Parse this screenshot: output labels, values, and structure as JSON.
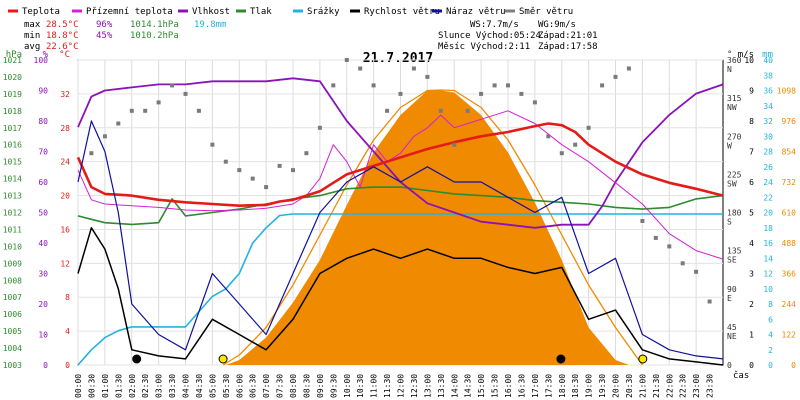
{
  "chart_data": {
    "type": "line",
    "title": "21.7.2017",
    "legend": [
      {
        "label": "Teplota",
        "color": "#e41b17"
      },
      {
        "label": "Přízemní teplota",
        "color": "#d61fd6"
      },
      {
        "label": "Vlhkost",
        "color": "#8b12b8"
      },
      {
        "label": "Tlak",
        "color": "#2e8b2e"
      },
      {
        "label": "Srážky",
        "color": "#22b3e0"
      },
      {
        "label": "Rychlost větru",
        "color": "#000000"
      },
      {
        "label": "Náraz větru",
        "color": "#1010a0"
      },
      {
        "label": "Směr větru",
        "color": "#808080"
      }
    ],
    "stats": {
      "max": {
        "label": "max",
        "temp": "28.5°C",
        "hum": "96%",
        "press": "1014.1hPa",
        "rain": "19.8mm"
      },
      "min": {
        "label": "min",
        "temp": "18.8°C",
        "hum": "45%",
        "press": "1010.2hPa"
      },
      "avg": {
        "label": "avg",
        "temp": "22.6°C"
      }
    },
    "wind_info": {
      "ws": "WS:7.7m/s",
      "wg": "WG:9m/s"
    },
    "sun_info": {
      "rise": "Slunce Východ:05:24",
      "set": "Západ:21:01"
    },
    "moon_info": {
      "rise": "Měsíc  Východ:2:11",
      "set": "Západ:17:58"
    },
    "axes": {
      "hpa": {
        "unit": "hPa",
        "ticks": [
          "1003",
          "1004",
          "1005",
          "1006",
          "1007",
          "1008",
          "1009",
          "1010",
          "1011",
          "1012",
          "1013",
          "1014",
          "1015",
          "1016",
          "1017",
          "1018",
          "1019",
          "1020",
          "1021"
        ],
        "range": [
          1003,
          1021
        ],
        "color": "#2e8b2e"
      },
      "pct": {
        "unit": "%",
        "ticks": [
          "0",
          "10",
          "20",
          "30",
          "40",
          "50",
          "60",
          "70",
          "80",
          "90",
          "100"
        ],
        "range": [
          0,
          100
        ],
        "color": "#8b12b8"
      },
      "temp": {
        "unit": "°C",
        "ticks": [
          "0",
          "4",
          "8",
          "12",
          "16",
          "20",
          "24",
          "28",
          "32"
        ],
        "range": [
          0,
          36
        ],
        "color": "#e41b17"
      },
      "dir": {
        "unit": "°",
        "ticks": [
          "0",
          "45\nNE",
          "90\nE",
          "135\nSE",
          "180\nS",
          "225\nSW",
          "270\nW",
          "315\nNW",
          "360\nN"
        ],
        "range": [
          0,
          360
        ],
        "color": "#333333"
      },
      "ms": {
        "unit": "m/s",
        "ticks": [
          "0",
          "1",
          "2",
          "3",
          "4",
          "5",
          "6",
          "7",
          "8",
          "9",
          "10"
        ],
        "range": [
          0,
          10
        ],
        "color": "#000000"
      },
      "mm": {
        "unit": "mm",
        "ticks": [
          "0",
          "2",
          "4",
          "6",
          "8",
          "10",
          "12",
          "14",
          "16",
          "18",
          "20",
          "22",
          "24",
          "26",
          "28",
          "30",
          "32",
          "34",
          "36",
          "38",
          "40"
        ],
        "range": [
          0,
          40
        ],
        "color": "#22b3e0"
      },
      "solar": {
        "unit": "",
        "ticks": [
          "0",
          "122",
          "244",
          "366",
          "488",
          "610",
          "732",
          "854",
          "976",
          "1098"
        ],
        "range": [
          0,
          1220
        ],
        "color": "#f08a00"
      },
      "time": {
        "label": "čas",
        "ticks": [
          "00:00",
          "00:30",
          "01:00",
          "01:30",
          "02:00",
          "02:30",
          "03:00",
          "03:30",
          "04:00",
          "04:30",
          "05:00",
          "05:30",
          "06:00",
          "06:30",
          "07:00",
          "07:30",
          "08:00",
          "08:30",
          "09:00",
          "09:30",
          "10:00",
          "10:30",
          "11:00",
          "11:30",
          "12:00",
          "12:30",
          "13:00",
          "13:30",
          "14:00",
          "14:30",
          "15:00",
          "15:30",
          "16:00",
          "16:30",
          "17:00",
          "17:30",
          "18:00",
          "18:30",
          "19:00",
          "19:30",
          "20:00",
          "20:30",
          "21:00",
          "21:30",
          "22:00",
          "22:30",
          "23:00",
          "23:30"
        ]
      }
    },
    "series": {
      "temperature": {
        "name": "Teplota",
        "x_hours": [
          0,
          0.5,
          1,
          1.5,
          2,
          3,
          4,
          5,
          6,
          7,
          7.5,
          8,
          8.5,
          9,
          9.5,
          10,
          11,
          12,
          13,
          14,
          15,
          16,
          17,
          17.5,
          18,
          18.5,
          19,
          20,
          21,
          22,
          23,
          24
        ],
        "values": [
          24.5,
          21,
          20.2,
          20.1,
          20,
          19.5,
          19.2,
          19,
          18.8,
          18.9,
          19.3,
          19.5,
          20,
          20.5,
          21.5,
          22.5,
          23.5,
          24.5,
          25.5,
          26.3,
          27,
          27.5,
          28.2,
          28.5,
          28.3,
          27.5,
          26,
          24,
          22.5,
          21.5,
          20.8,
          20
        ]
      },
      "ground_temperature": {
        "name": "Přízemní teplota",
        "x_hours": [
          0,
          0.5,
          1,
          2,
          3,
          4,
          5,
          6,
          7,
          8,
          8.5,
          9,
          9.5,
          10,
          10.5,
          11,
          11.5,
          12,
          12.5,
          13,
          13.5,
          14,
          15,
          16,
          17,
          18,
          19,
          20,
          21,
          22,
          23,
          24
        ],
        "values": [
          23,
          19.5,
          19,
          18.8,
          18.6,
          18.3,
          18.2,
          18.3,
          18.5,
          19,
          20,
          22,
          26,
          24,
          21,
          26,
          24,
          25,
          27,
          28,
          29.5,
          28,
          29,
          30,
          28.5,
          26,
          24,
          21.5,
          19,
          15.5,
          13.5,
          12.5
        ]
      },
      "humidity": {
        "name": "Vlhkost",
        "x_hours": [
          0,
          0.5,
          1,
          2,
          3,
          4,
          5,
          6,
          7,
          8,
          9,
          10,
          11,
          12,
          13,
          14,
          15,
          16,
          17,
          18,
          19,
          19.5,
          20,
          21,
          22,
          23,
          24
        ],
        "values": [
          78,
          88,
          90,
          91,
          92,
          92,
          93,
          93,
          93,
          94,
          93,
          80,
          70,
          60,
          53,
          50,
          47,
          46,
          45,
          46,
          46,
          52,
          60,
          73,
          82,
          89,
          92
        ]
      },
      "pressure": {
        "name": "Tlak",
        "x_hours": [
          0,
          0.5,
          1,
          2,
          3,
          3.5,
          4,
          5,
          6,
          7,
          8,
          9,
          10,
          11,
          12,
          13,
          14,
          15,
          16,
          17,
          18,
          19,
          20,
          21,
          22,
          23,
          24
        ],
        "values": [
          1011.8,
          1011.6,
          1011.4,
          1011.3,
          1011.4,
          1012.8,
          1011.8,
          1012,
          1012.2,
          1012.5,
          1012.8,
          1013,
          1013.4,
          1013.5,
          1013.5,
          1013.3,
          1013.1,
          1013,
          1012.9,
          1012.7,
          1012.6,
          1012.5,
          1012.3,
          1012.2,
          1012.3,
          1012.8,
          1013
        ]
      },
      "rain_cumulative": {
        "name": "Srážky",
        "x_hours": [
          0,
          0.5,
          1,
          1.5,
          2,
          3,
          4,
          5,
          5.5,
          6,
          6.5,
          7,
          7.5,
          8,
          24
        ],
        "values": [
          0,
          2,
          3.6,
          4.5,
          5,
          5,
          5,
          9,
          10,
          12,
          16,
          18,
          19.6,
          19.8,
          19.8
        ]
      },
      "wind_speed": {
        "name": "Rychlost větru",
        "x_hours": [
          0,
          0.5,
          1,
          1.5,
          2,
          3,
          4,
          5,
          6,
          7,
          8,
          9,
          10,
          11,
          12,
          13,
          14,
          15,
          16,
          17,
          18,
          19,
          20,
          21,
          22,
          23,
          24
        ],
        "values": [
          3,
          4.5,
          3.8,
          2.5,
          0.5,
          0.3,
          0.2,
          1.5,
          1,
          0.5,
          1.5,
          3,
          3.5,
          3.8,
          3.5,
          3.8,
          3.5,
          3.5,
          3.2,
          3,
          3.2,
          1.5,
          1.8,
          0.5,
          0.2,
          0.1,
          0
        ]
      },
      "wind_gust": {
        "name": "Náraz větru",
        "x_hours": [
          0,
          0.5,
          1,
          1.5,
          2,
          3,
          4,
          5,
          6,
          7,
          8,
          9,
          10,
          11,
          12,
          13,
          14,
          15,
          16,
          17,
          18,
          19,
          20,
          21,
          22,
          23,
          24
        ],
        "values": [
          6,
          8,
          7,
          5,
          2,
          1,
          0.5,
          3,
          2,
          1,
          3,
          5,
          6,
          6.5,
          6,
          6.5,
          6,
          6,
          5.5,
          5,
          5.5,
          3,
          3.5,
          1,
          0.5,
          0.3,
          0.2
        ]
      },
      "wind_direction": {
        "name": "Směr větru",
        "x_hours": [
          0.5,
          1,
          1.5,
          2,
          2.5,
          3,
          3.5,
          4,
          4.5,
          5,
          5.5,
          6,
          6.5,
          7,
          7.5,
          8,
          8.5,
          9,
          9.5,
          10,
          10.5,
          11,
          11.5,
          12,
          12.5,
          13,
          13.5,
          14,
          14.5,
          15,
          15.5,
          16,
          16.5,
          17,
          17.5,
          18,
          18.5,
          19,
          19.5,
          20,
          20.5,
          21,
          21.5,
          22,
          22.5,
          23,
          23.5
        ],
        "values": [
          250,
          270,
          285,
          300,
          300,
          310,
          330,
          320,
          300,
          260,
          240,
          230,
          220,
          210,
          235,
          230,
          250,
          280,
          330,
          360,
          350,
          330,
          300,
          320,
          350,
          340,
          300,
          260,
          300,
          320,
          330,
          330,
          320,
          310,
          270,
          250,
          260,
          280,
          330,
          340,
          350,
          170,
          150,
          140,
          120,
          110,
          75
        ]
      },
      "solar_radiation": {
        "name": "",
        "x_hours": [
          5.5,
          6,
          7,
          8,
          9,
          10,
          11,
          12,
          13,
          13.5,
          14,
          15,
          16,
          17,
          18,
          19,
          20,
          20.5
        ],
        "values": [
          0,
          20,
          110,
          250,
          420,
          640,
          850,
          1000,
          1098,
          1098,
          1090,
          1000,
          850,
          650,
          420,
          150,
          20,
          0
        ]
      },
      "solar_max": {
        "name": "",
        "x_hours": [
          5.4,
          6,
          7,
          8,
          9,
          10,
          11,
          12,
          13,
          13.5,
          14,
          15,
          16,
          17,
          18,
          19,
          20,
          21
        ],
        "values": [
          0,
          40,
          150,
          320,
          520,
          720,
          900,
          1030,
          1098,
          1100,
          1098,
          1030,
          900,
          720,
          520,
          320,
          150,
          0
        ]
      }
    },
    "markers": {
      "moon_rise": "02:11",
      "sun_rise": "05:24",
      "moon_set": "17:58",
      "sun_set": "21:01"
    }
  }
}
